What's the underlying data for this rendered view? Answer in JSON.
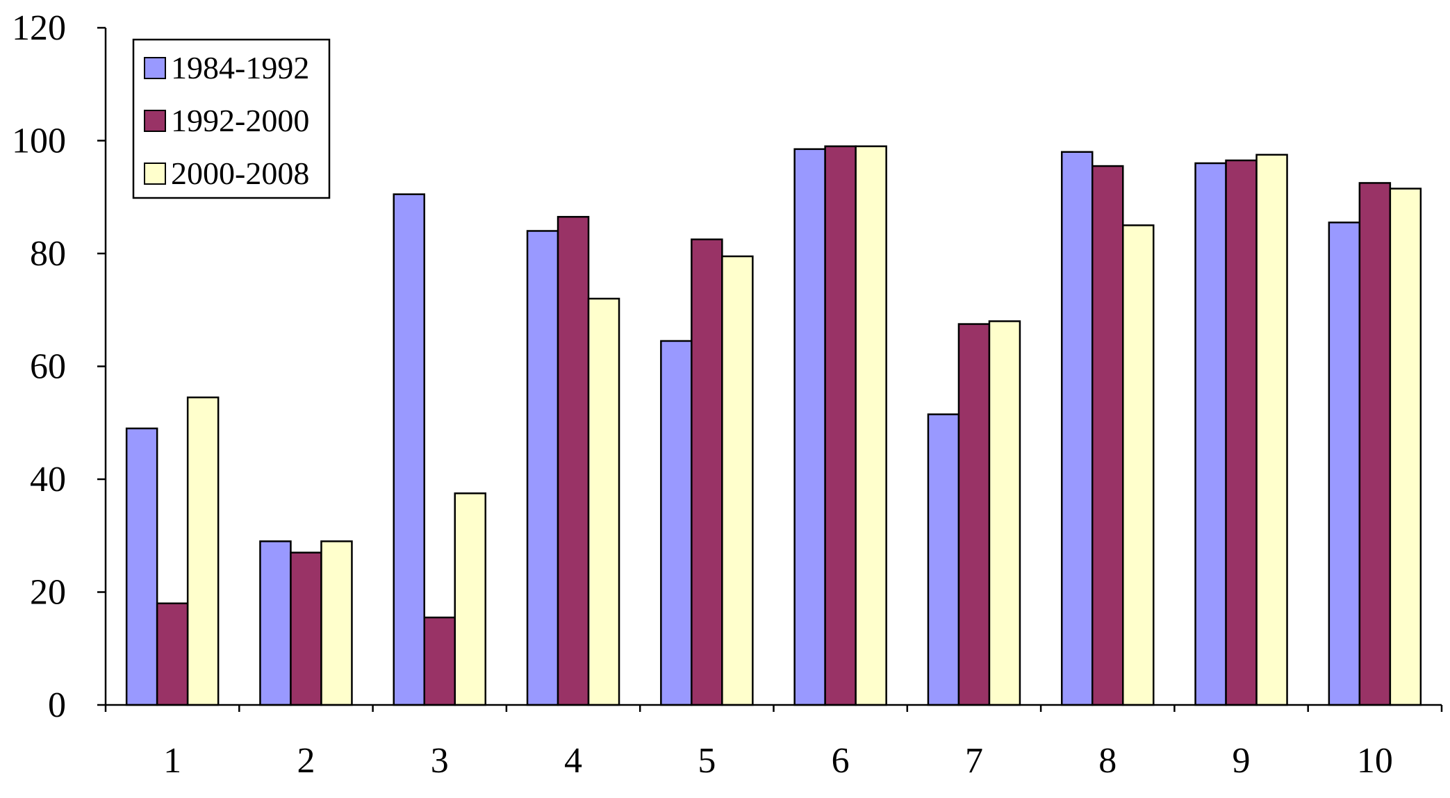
{
  "chart_data": {
    "type": "bar",
    "categories": [
      "1",
      "2",
      "3",
      "4",
      "5",
      "6",
      "7",
      "8",
      "9",
      "10"
    ],
    "series": [
      {
        "name": "1984-1992",
        "color": "#9999ff",
        "values": [
          49,
          29,
          90.5,
          84,
          64.5,
          98.5,
          51.5,
          98,
          96,
          85.5
        ]
      },
      {
        "name": "1992-2000",
        "color": "#993366",
        "values": [
          18,
          27,
          15.5,
          86.5,
          82.5,
          99,
          67.5,
          95.5,
          96.5,
          92.5
        ]
      },
      {
        "name": "2000-2008",
        "color": "#ffffcc",
        "values": [
          54.5,
          29,
          37.5,
          72,
          79.5,
          99,
          68,
          85,
          97.5,
          91.5
        ]
      }
    ],
    "title": "",
    "xlabel": "",
    "ylabel": "",
    "ylim": [
      0,
      120
    ],
    "yticks": [
      "0",
      "20",
      "40",
      "60",
      "80",
      "100",
      "120"
    ],
    "grid": false,
    "legend_position": "top-left"
  }
}
